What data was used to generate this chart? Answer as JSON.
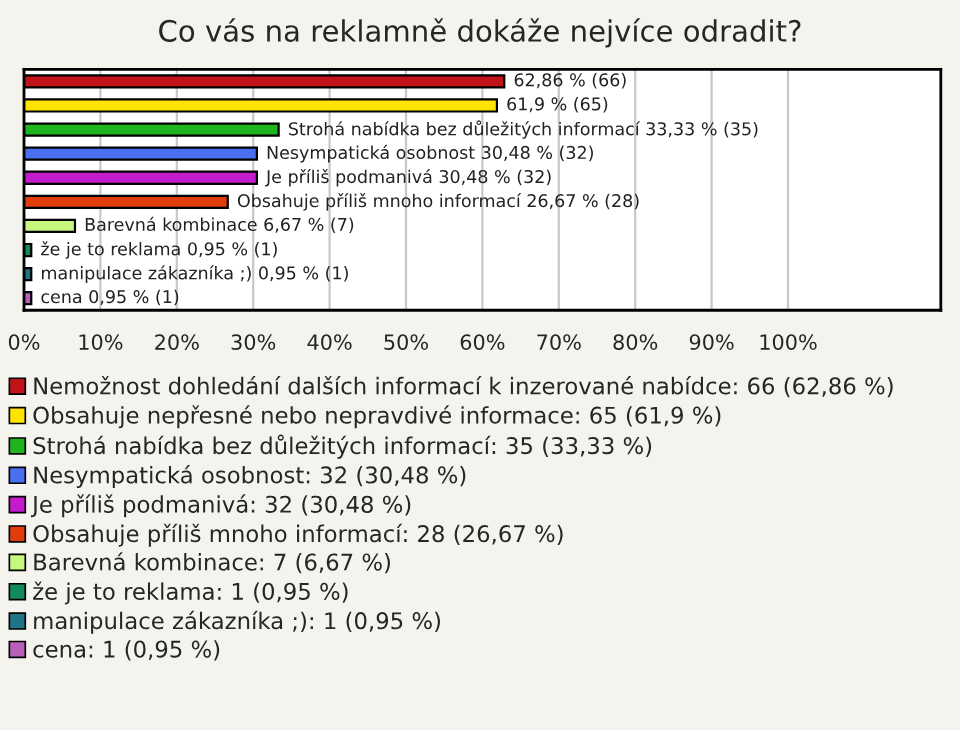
{
  "chart_data": {
    "type": "bar",
    "orientation": "horizontal",
    "title": "Co vás na reklamně dokáže nejvíce odradit?",
    "categories": [
      null,
      null,
      null,
      null,
      null,
      null,
      null,
      null,
      null,
      null
    ],
    "series": [
      {
        "name": "Nemožnost dohledání dalších informací k inzerované nabídce: 66 (62,86 %)",
        "color": "#c0141a",
        "values": [
          62.86,
          null,
          null,
          null,
          null,
          null,
          null,
          null,
          null,
          null
        ]
      },
      {
        "name": "Obsahuje nepřesné nebo nepravdivé informace: 65 (61,9 %)",
        "color": "#ffe400",
        "values": [
          null,
          61.9,
          null,
          null,
          null,
          null,
          null,
          null,
          null,
          null
        ]
      },
      {
        "name": "Strohá nabídka bez důležitých informací: 35 (33,33 %)",
        "color": "#1fb51f",
        "values": [
          null,
          null,
          33.33,
          null,
          null,
          null,
          null,
          null,
          null,
          null
        ]
      },
      {
        "name": "Nesympatická osobnost: 32 (30,48 %)",
        "color": "#4a6ff0",
        "values": [
          null,
          null,
          null,
          30.48,
          null,
          null,
          null,
          null,
          null,
          null
        ]
      },
      {
        "name": "Je příliš podmanivá: 32 (30,48 %)",
        "color": "#c21ccc",
        "values": [
          null,
          null,
          null,
          null,
          30.48,
          null,
          null,
          null,
          null,
          null
        ]
      },
      {
        "name": "Obsahuje příliš mnoho informací: 28 (26,67 %)",
        "color": "#e03c0c",
        "values": [
          null,
          null,
          null,
          null,
          null,
          26.67,
          null,
          null,
          null,
          null
        ]
      },
      {
        "name": "Barevná kombinace: 7 (6,67 %)",
        "color": "#c8f780",
        "values": [
          null,
          null,
          null,
          null,
          null,
          null,
          6.67,
          null,
          null,
          null
        ]
      },
      {
        "name": "že je to reklama: 1 (0,95 %)",
        "color": "#138a5c",
        "values": [
          null,
          null,
          null,
          null,
          null,
          null,
          null,
          0.95,
          null,
          null
        ]
      },
      {
        "name": "manipulace zákazníka ;): 1 (0,95 %)",
        "color": "#1f7585",
        "values": [
          null,
          null,
          null,
          null,
          null,
          null,
          null,
          null,
          0.95,
          null
        ]
      },
      {
        "name": "cena: 1 (0,95 %)",
        "color": "#b860b8",
        "values": [
          null,
          null,
          null,
          null,
          null,
          null,
          null,
          null,
          null,
          0.95
        ]
      }
    ],
    "value_labels": [
      "62,86 % (66)",
      "61,9 % (65)",
      "Strohá nabídka bez důležitých informací 33,33 % (35)",
      "Nesympatická osobnost 30,48 % (32)",
      "Je příliš podmanivá 30,48 % (32)",
      "Obsahuje příliš mnoho informací 26,67 % (28)",
      "Barevná kombinace 6,67 % (7)",
      "že je to reklama 0,95 % (1)",
      "manipulace zákazníka ;) 0,95 % (1)",
      "cena 0,95 % (1)"
    ],
    "xlim": [
      0,
      120
    ],
    "xticks": [
      {
        "value": 0,
        "label": "0%"
      },
      {
        "value": 10,
        "label": "10%"
      },
      {
        "value": 20,
        "label": "20%"
      },
      {
        "value": 30,
        "label": "30%"
      },
      {
        "value": 40,
        "label": "40%"
      },
      {
        "value": 50,
        "label": "50%"
      },
      {
        "value": 60,
        "label": "60%"
      },
      {
        "value": 70,
        "label": "70%"
      },
      {
        "value": 80,
        "label": "80%"
      },
      {
        "value": 90,
        "label": "90%"
      },
      {
        "value": 100,
        "label": "100%"
      }
    ],
    "tick_labels": "x",
    "grid": "x",
    "legend": "bottom"
  }
}
